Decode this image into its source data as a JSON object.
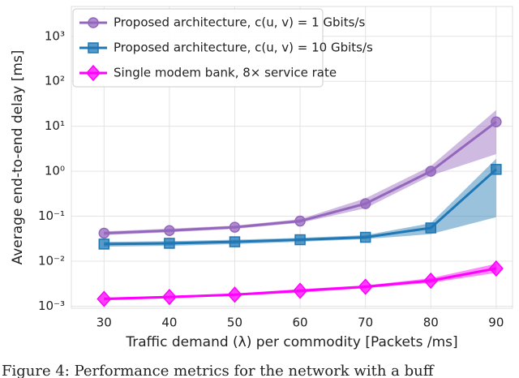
{
  "chart_data": {
    "type": "line",
    "x_label": "Traffic demand (λ) per commodity [Packets /ms]",
    "y_label": "Average end-to-end delay [ms]",
    "caption": "Figure 4: Performance metrics for the network with a buff",
    "x": [
      30,
      40,
      50,
      60,
      70,
      80,
      90
    ],
    "xlim": [
      25,
      92.5
    ],
    "xticks": [
      30,
      40,
      50,
      60,
      70,
      80,
      90
    ],
    "ylim": [
      0.0009,
      4600
    ],
    "y_scale": "log",
    "yticks": [
      {
        "value": 0.001,
        "label": "10⁻³"
      },
      {
        "value": 0.01,
        "label": "10⁻²"
      },
      {
        "value": 0.1,
        "label": "10⁻¹"
      },
      {
        "value": 1,
        "label": "10⁰"
      },
      {
        "value": 10,
        "label": "10¹"
      },
      {
        "value": 100,
        "label": "10²"
      },
      {
        "value": 1000,
        "label": "10³"
      }
    ],
    "grid": true,
    "legend": "upper left",
    "series": [
      {
        "name": "Proposed architecture, c(u, v) = 1 Gbits/s",
        "color": "#9467bd",
        "marker": "circle",
        "values": [
          0.042,
          0.048,
          0.057,
          0.078,
          0.19,
          1.0,
          12.5
        ],
        "band_lower": [
          0.038,
          0.044,
          0.052,
          0.071,
          0.15,
          0.8,
          2.4
        ],
        "band_upper": [
          0.046,
          0.053,
          0.062,
          0.086,
          0.25,
          1.3,
          23
        ]
      },
      {
        "name": "Proposed architecture, c(u, v) = 10 Gbits/s",
        "color": "#1f77b4",
        "marker": "square",
        "values": [
          0.024,
          0.025,
          0.027,
          0.03,
          0.034,
          0.055,
          1.1
        ],
        "band_lower": [
          0.021,
          0.022,
          0.024,
          0.027,
          0.031,
          0.04,
          0.095
        ],
        "band_upper": [
          0.027,
          0.028,
          0.03,
          0.033,
          0.038,
          0.07,
          1.9
        ]
      },
      {
        "name": "Single modem bank, 8× service rate",
        "color": "#ff00ff",
        "marker": "diamond",
        "values": [
          0.00145,
          0.0016,
          0.0018,
          0.0022,
          0.0027,
          0.0037,
          0.0069
        ],
        "band_lower": [
          0.00135,
          0.0015,
          0.0017,
          0.002,
          0.0025,
          0.0033,
          0.0055
        ],
        "band_upper": [
          0.00155,
          0.0017,
          0.0019,
          0.0024,
          0.0029,
          0.0042,
          0.0088
        ]
      }
    ]
  }
}
